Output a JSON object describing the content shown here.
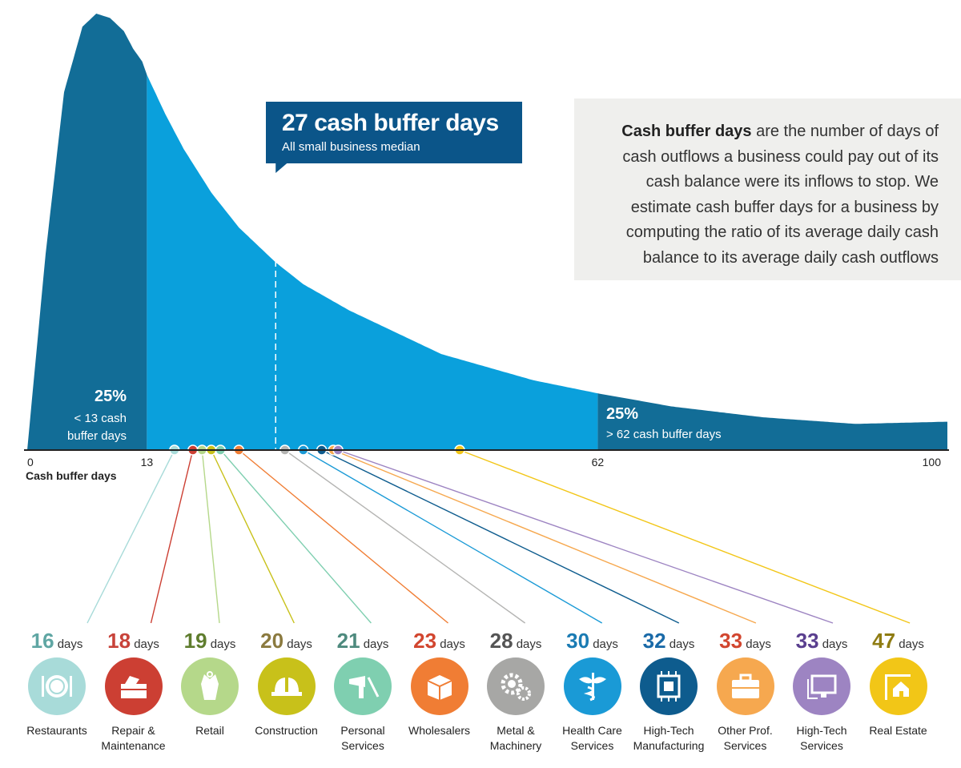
{
  "chart_data": {
    "type": "area",
    "xlabel": "Cash buffer days",
    "xlim": [
      0,
      100
    ],
    "x_ticks": [
      "0",
      "13",
      "62",
      "100"
    ],
    "distribution": {
      "x": [
        0,
        2,
        4,
        6,
        7.5,
        9,
        10.5,
        11.5,
        12.5,
        13,
        15,
        17,
        20,
        23,
        27,
        30,
        35,
        40,
        45,
        50,
        55,
        62,
        70,
        80,
        90,
        100
      ],
      "y": [
        0,
        0.45,
        0.82,
        0.97,
        1.0,
        0.99,
        0.96,
        0.92,
        0.89,
        0.86,
        0.77,
        0.69,
        0.59,
        0.51,
        0.43,
        0.38,
        0.32,
        0.27,
        0.22,
        0.19,
        0.16,
        0.13,
        0.1,
        0.075,
        0.06,
        0.065
      ]
    },
    "lower_quartile": {
      "pct": "25%",
      "line1": "< 13 cash",
      "line2": "buffer days",
      "threshold": 13
    },
    "upper_quartile": {
      "pct": "25%",
      "line1": "> 62 cash buffer days",
      "threshold": 62
    },
    "median": {
      "value": 27,
      "title": "27 cash buffer days",
      "subtitle": "All small business median"
    },
    "industries": [
      {
        "name_l1": "Restaurants",
        "name_l2": "",
        "days": 16,
        "days_label": "16",
        "color": "#5fa6a3",
        "icon_bg": "#a8dbd9",
        "dot": "#a8dbd9",
        "icon": "plate-icon"
      },
      {
        "name_l1": "Repair &",
        "name_l2": "Maintenance",
        "days": 18,
        "days_label": "18",
        "color": "#c8433a",
        "icon_bg": "#cc3f33",
        "dot": "#cc3f33",
        "icon": "toolbox-icon"
      },
      {
        "name_l1": "Retail",
        "name_l2": "",
        "days": 19,
        "days_label": "19",
        "color": "#5f7d2e",
        "icon_bg": "#b5d88a",
        "dot": "#b5d88a",
        "icon": "apron-icon"
      },
      {
        "name_l1": "Construction",
        "name_l2": "",
        "days": 20,
        "days_label": "20",
        "color": "#8b7a3f",
        "icon_bg": "#c8c11a",
        "dot": "#c8c11a",
        "icon": "hardhat-icon"
      },
      {
        "name_l1": "Personal",
        "name_l2": "Services",
        "days": 21,
        "days_label": "21",
        "color": "#4e8a7e",
        "icon_bg": "#7fcfb0",
        "dot": "#7fcfb0",
        "icon": "hairdryer-icon"
      },
      {
        "name_l1": "Wholesalers",
        "name_l2": "",
        "days": 23,
        "days_label": "23",
        "color": "#d2462f",
        "icon_bg": "#f07d34",
        "dot": "#f07d34",
        "icon": "boxes-icon"
      },
      {
        "name_l1": "Metal &",
        "name_l2": "Machinery",
        "days": 28,
        "days_label": "28",
        "color": "#555555",
        "icon_bg": "#a7a7a5",
        "dot": "#b4b4b2",
        "icon": "gears-icon"
      },
      {
        "name_l1": "Health Care",
        "name_l2": "Services",
        "days": 30,
        "days_label": "30",
        "color": "#1a7bb3",
        "icon_bg": "#1a9ad6",
        "dot": "#1a9ad6",
        "icon": "caduceus-icon"
      },
      {
        "name_l1": "High-Tech",
        "name_l2": "Manufacturing",
        "days": 32,
        "days_label": "32",
        "color": "#1a6aa8",
        "icon_bg": "#0e5c8e",
        "dot": "#0e5c8e",
        "icon": "chip-icon"
      },
      {
        "name_l1": "Other Prof.",
        "name_l2": "Services",
        "days": 33,
        "days_label": "33",
        "color": "#d2462f",
        "icon_bg": "#f6a84f",
        "dot": "#f6a84f",
        "icon": "briefcase-icon"
      },
      {
        "name_l1": "High-Tech",
        "name_l2": "Services",
        "days": 33,
        "days_label": "33",
        "color": "#5a3f8f",
        "icon_bg": "#9d84c2",
        "dot": "#9d84c2",
        "icon": "monitor-icon"
      },
      {
        "name_l1": "Real Estate",
        "name_l2": "",
        "days": 47,
        "days_label": "47",
        "color": "#8f7c12",
        "icon_bg": "#f2c617",
        "dot": "#f2c617",
        "icon": "house-sign-icon"
      }
    ],
    "days_word": "days"
  },
  "info": {
    "bold": "Cash buffer days",
    "rest": " are the number of days of cash outflows a business could pay out of its cash balance were its inflows to stop. We estimate cash buffer days for a business by computing the ratio of its average daily cash balance to its average daily cash outflows"
  },
  "colors": {
    "dark": "#126d97",
    "light": "#0aa0dc",
    "callout": "#0b5589"
  }
}
